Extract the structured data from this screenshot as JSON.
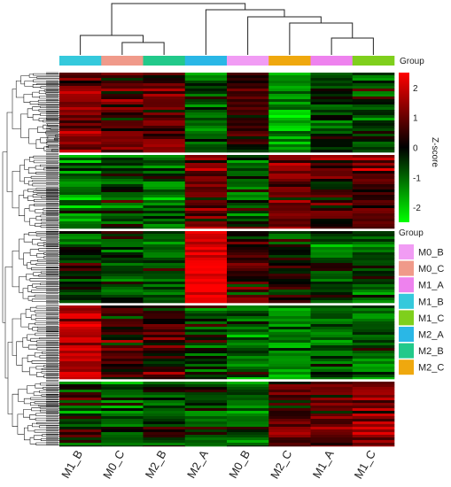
{
  "chart_data": {
    "type": "heatmap",
    "title": "",
    "columns": [
      "M1_B",
      "M0_C",
      "M2_B",
      "M2_A",
      "M0_B",
      "M2_C",
      "M1_A",
      "M1_C"
    ],
    "column_dendrogram": {
      "merges": [
        {
          "left": "M0_C",
          "right": "M2_B"
        },
        {
          "left": "M1_B",
          "right": [
            "M0_C",
            "M2_B"
          ]
        },
        {
          "left": "M1_A",
          "right": "M1_C"
        },
        {
          "left": "M2_C",
          "right": [
            "M1_A",
            "M1_C"
          ]
        },
        {
          "left": "M0_B",
          "right": [
            "M2_C",
            "M1_A",
            "M1_C"
          ]
        },
        {
          "left": "M2_A",
          "right": [
            "M0_B",
            "M2_C",
            "M1_A",
            "M1_C"
          ]
        },
        {
          "left": [
            "M1_B",
            "M0_C",
            "M2_B"
          ],
          "right": [
            "M2_A",
            "M0_B",
            "M2_C",
            "M1_A",
            "M1_C"
          ]
        }
      ]
    },
    "group_annotation": {
      "label": "Group",
      "column_groups": [
        "M1_B",
        "M0_C",
        "M2_B",
        "M2_A",
        "M0_B",
        "M2_C",
        "M1_A",
        "M1_C"
      ]
    },
    "group_legend": {
      "title": "Group",
      "entries": [
        {
          "name": "M0_B",
          "color": "#f19cf4"
        },
        {
          "name": "M0_C",
          "color": "#f09a8a"
        },
        {
          "name": "M1_A",
          "color": "#ee82ee"
        },
        {
          "name": "M1_B",
          "color": "#35c9dc"
        },
        {
          "name": "M1_C",
          "color": "#7fcf1c"
        },
        {
          "name": "M2_A",
          "color": "#2ab7e6"
        },
        {
          "name": "M2_B",
          "color": "#22c98a"
        },
        {
          "name": "M2_C",
          "color": "#efa80e"
        }
      ]
    },
    "colorbar": {
      "title": "Z-score",
      "min": -2.5,
      "max": 2.5,
      "ticks": [
        2,
        1,
        0,
        -1,
        -2
      ],
      "tick_labels": [
        "2",
        "1",
        "0",
        "-1",
        "-2"
      ],
      "colors": [
        "#00ff00",
        "#000000",
        "#ff0000"
      ]
    },
    "row_clusters": [
      {
        "cluster": 1,
        "mean_zscore": [
          1.0,
          0.6,
          0.8,
          -0.7,
          0.5,
          -1.4,
          -0.3,
          -0.3
        ]
      },
      {
        "cluster": 2,
        "mean_zscore": [
          -1.1,
          -0.6,
          -0.7,
          0.9,
          -0.6,
          1.1,
          0.5,
          0.5
        ]
      },
      {
        "cluster": 3,
        "mean_zscore": [
          -0.4,
          -0.4,
          -0.5,
          2.2,
          0.3,
          -0.1,
          -0.4,
          -0.6
        ]
      },
      {
        "cluster": 4,
        "mean_zscore": [
          1.8,
          0.5,
          0.4,
          -0.3,
          -0.7,
          -1.0,
          -0.6,
          -0.8
        ]
      },
      {
        "cluster": 5,
        "mean_zscore": [
          -0.2,
          -0.6,
          -0.4,
          -0.5,
          -0.7,
          0.8,
          0.6,
          1.1
        ]
      }
    ],
    "xlabel": "",
    "ylabel": ""
  }
}
